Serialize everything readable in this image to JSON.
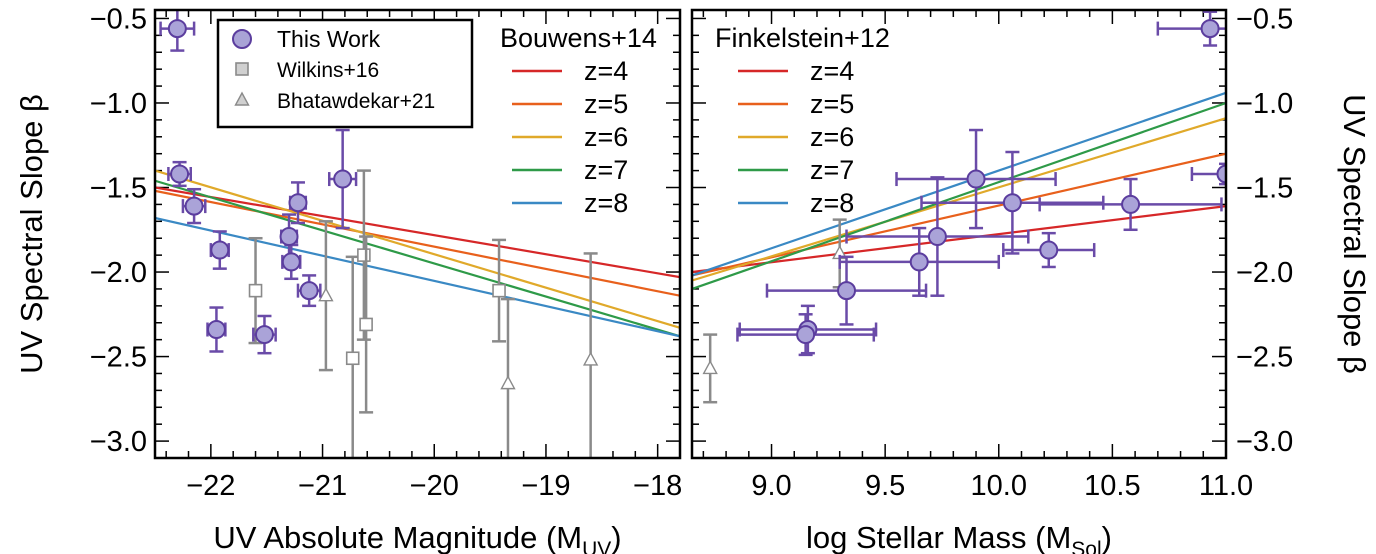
{
  "chart_data": [
    {
      "type": "scatter",
      "panel": "left",
      "xlabel_main": "UV Absolute Magnitude (M",
      "xlabel_sub": "UV",
      "xlabel_tail": ")",
      "ylabel": "UV Spectral Slope β",
      "xlim": [
        -22.5,
        -17.8
      ],
      "ylim": [
        -3.1,
        -0.45
      ],
      "x_ticks": [
        -22,
        -21,
        -20,
        -19,
        -18
      ],
      "x_tick_labels": [
        "−22",
        "−21",
        "−20",
        "−19",
        "−18"
      ],
      "y_ticks": [
        -3.0,
        -2.5,
        -2.0,
        -1.5,
        -1.0,
        -0.5
      ],
      "y_tick_labels": [
        "−3.0",
        "−2.5",
        "−2.0",
        "−1.5",
        "−1.0",
        "−0.5"
      ],
      "legend_box": {
        "placement": "top-left",
        "entries": [
          {
            "label": "This Work",
            "marker": "circle",
            "color": "#a9a3d6",
            "edge": "#5b3d9e"
          },
          {
            "label": "Wilkins+16",
            "marker": "square",
            "color": "#d0d0d0",
            "edge": "#8a8a8a"
          },
          {
            "label": "Bhatawdekar+21",
            "marker": "triangle",
            "color": "#d0d0d0",
            "edge": "#8a8a8a"
          }
        ]
      },
      "relation_title": "Bouwens+14",
      "relations": [
        {
          "name": "z=4",
          "color": "#d62728",
          "x": [
            -22.5,
            -17.8
          ],
          "y": [
            -1.5,
            -2.03
          ]
        },
        {
          "name": "z=5",
          "color": "#e8601c",
          "x": [
            -22.5,
            -17.8
          ],
          "y": [
            -1.52,
            -2.14
          ]
        },
        {
          "name": "z=6",
          "color": "#e0a92a",
          "x": [
            -22.5,
            -17.8
          ],
          "y": [
            -1.4,
            -2.33
          ]
        },
        {
          "name": "z=7",
          "color": "#2e9a48",
          "x": [
            -22.5,
            -17.8
          ],
          "y": [
            -1.46,
            -2.38
          ]
        },
        {
          "name": "z=8",
          "color": "#3a89c4",
          "x": [
            -22.5,
            -17.8
          ],
          "y": [
            -1.68,
            -2.38
          ]
        }
      ],
      "this_work": [
        {
          "x": -22.3,
          "y": -0.56,
          "xerr": 0.15,
          "yerr": 0.13
        },
        {
          "x": -22.28,
          "y": -1.42,
          "xerr": 0.1,
          "yerr": 0.07
        },
        {
          "x": -22.15,
          "y": -1.61,
          "xerr": 0.1,
          "yerr": 0.1
        },
        {
          "x": -21.92,
          "y": -1.87,
          "xerr": 0.08,
          "yerr": 0.11
        },
        {
          "x": -21.95,
          "y": -2.34,
          "xerr": 0.08,
          "yerr": 0.13
        },
        {
          "x": -21.52,
          "y": -2.37,
          "xerr": 0.1,
          "yerr": 0.11
        },
        {
          "x": -21.3,
          "y": -1.79,
          "xerr": 0.07,
          "yerr": 0.13
        },
        {
          "x": -21.22,
          "y": -1.59,
          "xerr": 0.07,
          "yerr": 0.12
        },
        {
          "x": -21.28,
          "y": -1.94,
          "xerr": 0.08,
          "yerr": 0.1
        },
        {
          "x": -21.12,
          "y": -2.11,
          "xerr": 0.1,
          "yerr": 0.09
        },
        {
          "x": -20.82,
          "y": -1.45,
          "xerr": 0.12,
          "yerr": 0.29
        }
      ],
      "wilkins16": [
        {
          "x": -21.6,
          "y": -2.11,
          "yerr": 0.31
        },
        {
          "x": -20.73,
          "y": -2.51,
          "yerr": 0.6
        },
        {
          "x": -20.63,
          "y": -1.9,
          "yerr": 0.5
        },
        {
          "x": -20.61,
          "y": -2.31,
          "yerr": 0.52
        },
        {
          "x": -19.42,
          "y": -2.11,
          "yerr": 0.3
        }
      ],
      "bhatawdekar21": [
        {
          "x": -20.97,
          "y": -2.14,
          "yerr": 0.44
        },
        {
          "x": -19.34,
          "y": -2.66,
          "yerr": 0.5
        },
        {
          "x": -18.6,
          "y": -2.52,
          "yerr": 0.63
        }
      ]
    },
    {
      "type": "scatter",
      "panel": "right",
      "xlabel_main": "log Stellar Mass (M",
      "xlabel_sub": "Sol",
      "xlabel_tail": ")",
      "ylabel": "UV Spectral Slope β",
      "xlim": [
        8.65,
        11.0
      ],
      "ylim": [
        -3.1,
        -0.45
      ],
      "x_ticks": [
        9.0,
        9.5,
        10.0,
        10.5,
        11.0
      ],
      "x_tick_labels": [
        "9.0",
        "9.5",
        "10.0",
        "10.5",
        "11.0"
      ],
      "y_ticks": [
        -3.0,
        -2.5,
        -2.0,
        -1.5,
        -1.0,
        -0.5
      ],
      "y_tick_labels": [
        "−3.0",
        "−2.5",
        "−2.0",
        "−1.5",
        "−1.0",
        "−0.5"
      ],
      "relation_title": "Finkelstein+12",
      "relations": [
        {
          "name": "z=4",
          "color": "#d62728",
          "x": [
            8.65,
            11.0
          ],
          "y": [
            -2.0,
            -1.61
          ]
        },
        {
          "name": "z=5",
          "color": "#e8601c",
          "x": [
            8.65,
            11.0
          ],
          "y": [
            -2.02,
            -1.3
          ]
        },
        {
          "name": "z=6",
          "color": "#e0a92a",
          "x": [
            8.65,
            11.0
          ],
          "y": [
            -2.05,
            -1.09
          ]
        },
        {
          "name": "z=7",
          "color": "#2e9a48",
          "x": [
            8.65,
            11.0
          ],
          "y": [
            -2.1,
            -1.0
          ]
        },
        {
          "name": "z=8",
          "color": "#3a89c4",
          "x": [
            8.65,
            11.0
          ],
          "y": [
            -2.02,
            -0.94
          ]
        }
      ],
      "this_work": [
        {
          "x": 10.93,
          "y": -0.56,
          "xerr": 0.23,
          "yerr": 0.1
        },
        {
          "x": 11.0,
          "y": -1.42,
          "xerr": 0.15,
          "yerr": 0.06
        },
        {
          "x": 9.9,
          "y": -1.45,
          "xerr": 0.35,
          "yerr": 0.29
        },
        {
          "x": 10.06,
          "y": -1.59,
          "xerr": 0.4,
          "yerr": 0.3
        },
        {
          "x": 10.58,
          "y": -1.6,
          "xerr": 0.4,
          "yerr": 0.15
        },
        {
          "x": 9.73,
          "y": -1.79,
          "xerr": 0.4,
          "yerr": 0.35
        },
        {
          "x": 10.22,
          "y": -1.87,
          "xerr": 0.2,
          "yerr": 0.1
        },
        {
          "x": 9.65,
          "y": -1.94,
          "xerr": 0.35,
          "yerr": 0.2
        },
        {
          "x": 9.33,
          "y": -2.11,
          "xerr": 0.35,
          "yerr": 0.2
        },
        {
          "x": 9.16,
          "y": -2.34,
          "xerr": 0.3,
          "yerr": 0.14
        },
        {
          "x": 9.15,
          "y": -2.37,
          "xerr": 0.3,
          "yerr": 0.12
        }
      ],
      "bhatawdekar21": [
        {
          "x": 9.3,
          "y": -1.89,
          "yerr": 0.2
        },
        {
          "x": 8.73,
          "y": -2.57,
          "yerr": 0.2
        }
      ]
    }
  ]
}
